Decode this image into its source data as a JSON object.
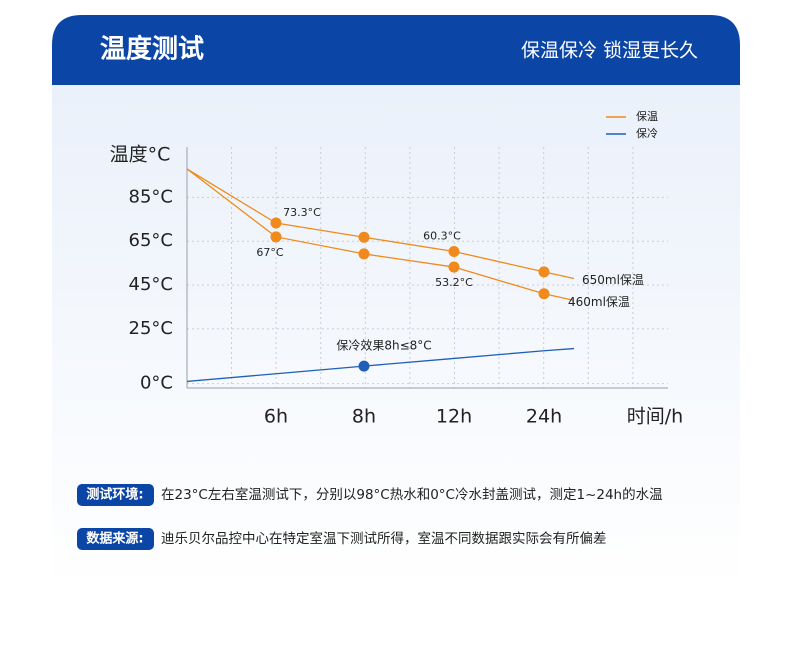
{
  "header": {
    "title": "温度测试",
    "subtitle": "保温保冷 锁湿更长久"
  },
  "chart_data": {
    "type": "line",
    "y_label": "温度°C",
    "x_label": "时间/h",
    "categories": [
      null,
      "6h",
      "8h",
      "12h",
      "24h",
      null
    ],
    "ylim": [
      -2,
      108
    ],
    "yticks": [
      {
        "value": 0,
        "label": "0°C"
      },
      {
        "value": 25,
        "label": "25°C"
      },
      {
        "value": 45,
        "label": "45°C"
      },
      {
        "value": 65,
        "label": "65°C"
      },
      {
        "value": 85,
        "label": "85°C"
      }
    ],
    "grid": true,
    "legend": [
      {
        "name": "保温",
        "color": "#f08a1c"
      },
      {
        "name": "保冷",
        "color": "#1f5fb8"
      }
    ],
    "series": [
      {
        "name": "650ml保温",
        "color": "#f08a1c",
        "values": [
          98,
          73.3,
          66.8,
          60.3,
          51,
          48
        ],
        "value_labels": [
          null,
          "73.3°C",
          null,
          "60.3°C",
          null,
          null
        ],
        "markers": [
          false,
          true,
          true,
          true,
          true,
          false
        ]
      },
      {
        "name": "460ml保温",
        "color": "#f08a1c",
        "values": [
          98,
          67,
          59.2,
          53.2,
          41,
          38
        ],
        "value_labels": [
          null,
          "67°C",
          null,
          "53.2°C",
          null,
          null
        ],
        "markers": [
          false,
          true,
          true,
          true,
          true,
          false
        ]
      },
      {
        "color": "#1f5fb8",
        "values": [
          1,
          4.5,
          8,
          11.5,
          15,
          16
        ],
        "markers": [
          false,
          false,
          true,
          false,
          false,
          false
        ],
        "annotation": "保冷效果8h≤8°C"
      }
    ]
  },
  "notes": [
    {
      "label": "测试环境:",
      "text": "在23°C左右室温测试下，分别以98°C热水和0°C冷水封盖测试，测定1~24h的水温"
    },
    {
      "label": "数据来源:",
      "text": "迪乐贝尔品控中心在特定室温下测试所得，室温不同数据跟实际会有所偏差"
    }
  ]
}
